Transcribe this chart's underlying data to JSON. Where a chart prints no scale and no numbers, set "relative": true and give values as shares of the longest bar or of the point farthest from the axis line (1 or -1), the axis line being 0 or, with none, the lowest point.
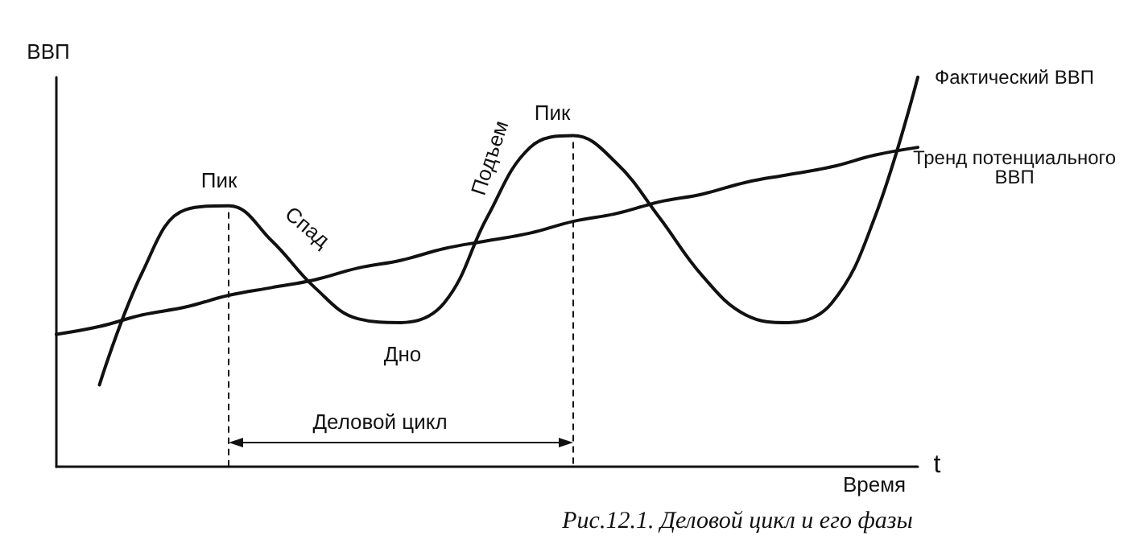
{
  "chart_data": {
    "type": "line",
    "relative": true,
    "title": "Рис.12.1. Деловой цикл и его фазы",
    "xlabel": "Время",
    "ylabel": "ВВП",
    "categories": [
      null,
      null,
      null,
      null,
      null,
      null,
      null,
      null,
      null,
      null,
      null,
      null,
      null,
      null,
      null,
      null,
      null,
      null,
      null,
      null,
      null
    ],
    "series": [
      {
        "name": "Фактический ВВП",
        "color": "#111111",
        "values": [
          null,
          0.21,
          0.5,
          0.66,
          0.67,
          0.58,
          0.46,
          0.38,
          0.37,
          0.42,
          0.64,
          0.82,
          0.85,
          0.78,
          0.64,
          0.49,
          0.39,
          0.37,
          0.42,
          0.64,
          1
        ]
      },
      {
        "name": "Тренд потенциального ВВП",
        "color": "#111111",
        "values": [
          0.34,
          0.36,
          0.39,
          0.41,
          0.44,
          0.46,
          0.48,
          0.51,
          0.53,
          0.56,
          0.58,
          0.6,
          0.63,
          0.65,
          0.68,
          0.7,
          0.73,
          0.75,
          0.77,
          0.8,
          0.82
        ]
      }
    ],
    "annotations": [
      "Пик",
      "Спад",
      "Дно",
      "Подъем",
      "Пик",
      "Деловой цикл",
      "t"
    ],
    "legend": false,
    "grid": false,
    "marker": "none",
    "line_style": "solid"
  }
}
